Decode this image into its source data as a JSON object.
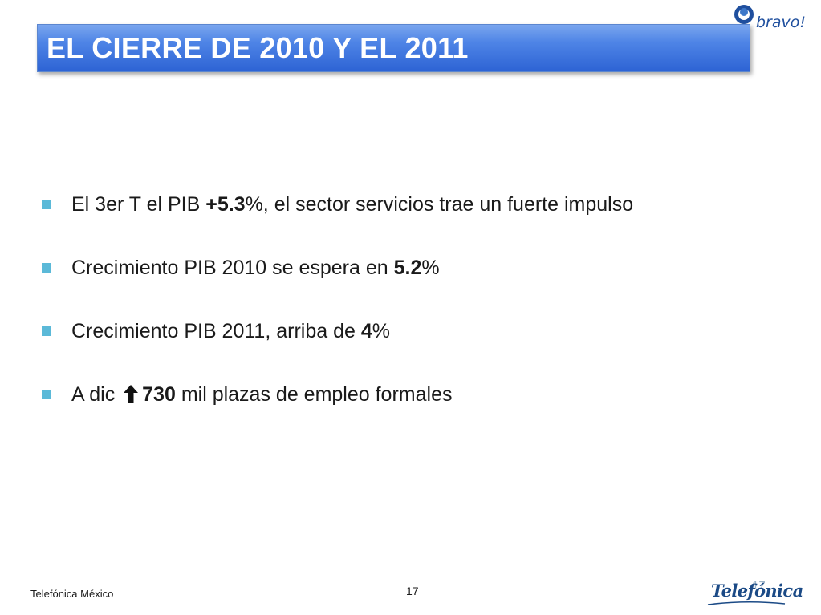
{
  "slide": {
    "title": "EL CIERRE DE 2010 Y EL 2011",
    "logo_text": "bravo!",
    "bullets": [
      {
        "pre": "El 3er T el PIB ",
        "bold": "+5.3",
        "post": "%, el sector servicios trae un fuerte impulso"
      },
      {
        "pre": "Crecimiento PIB 2010 se espera en ",
        "bold": "5.2",
        "post": "%"
      },
      {
        "pre": "Crecimiento PIB 2011, arriba de  ",
        "bold": "4",
        "post": "%"
      },
      {
        "pre": "A dic ",
        "bold": "730",
        "post": " mil plazas de empleo formales"
      }
    ]
  },
  "footer": {
    "left_text": "Telefónica México",
    "page_number": "17",
    "ghost_number": "17",
    "brand_logo": "Telefónica"
  },
  "colors": {
    "title_bar": "#4e84e6",
    "bullet_square": "#5bb9d8",
    "footer_line": "#a7bfd8"
  },
  "icons": {
    "bullet_marker": "square-bullet-icon",
    "up_arrow": "up-arrow-icon",
    "logo_mark": "bravo-logo-icon"
  }
}
